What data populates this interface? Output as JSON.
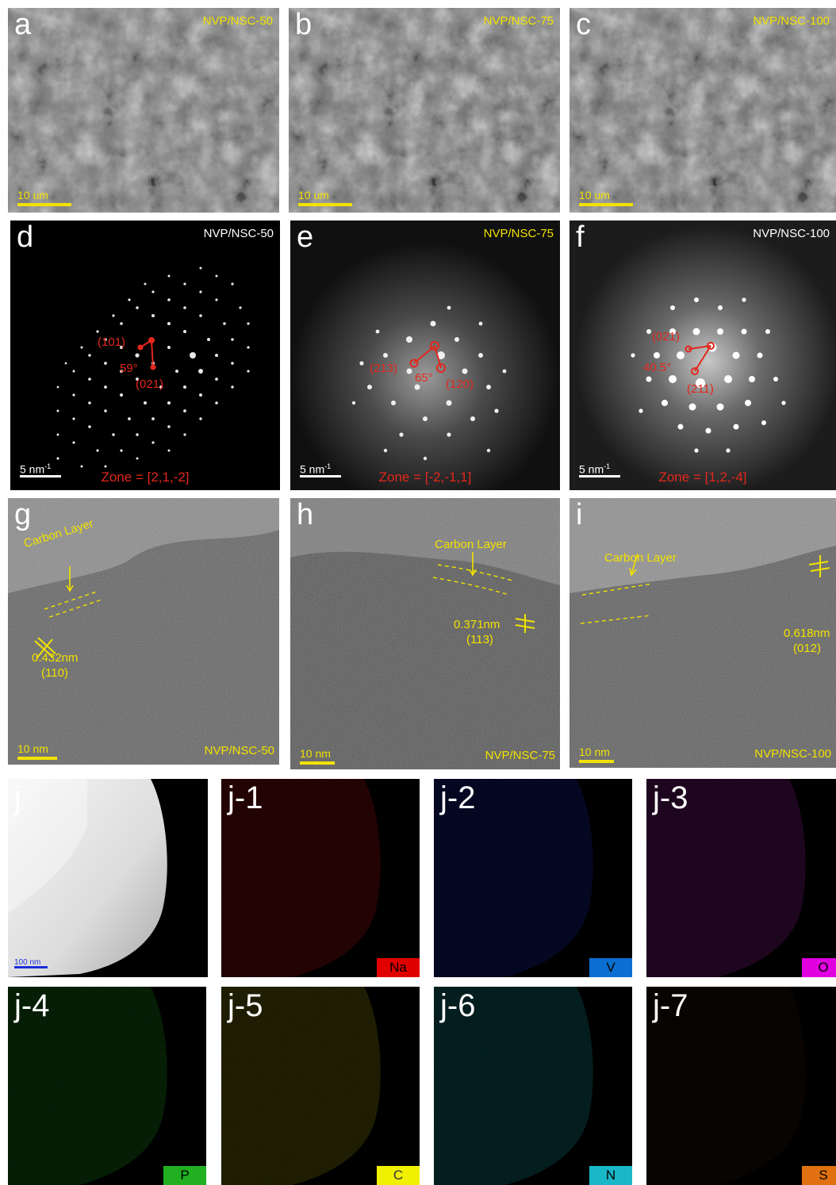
{
  "colors": {
    "label": "#ffffff",
    "yellow": "#f2e200",
    "red": "#e3271c"
  },
  "sem": {
    "a": {
      "letter": "a",
      "sample": "NVP/NSC-50",
      "scale": "10 um"
    },
    "b": {
      "letter": "b",
      "sample": "NVP/NSC-75",
      "scale": "10 um"
    },
    "c": {
      "letter": "c",
      "sample": "NVP/NSC-100",
      "scale": "10 um"
    }
  },
  "saed": {
    "d": {
      "letter": "d",
      "sample": "NVP/NSC-50",
      "scale": "5 nm",
      "scale_exp": "-1",
      "zone": "Zone = [2,1,-2]",
      "spot1": "(101)",
      "spot2": "(021)",
      "angle": "59°"
    },
    "e": {
      "letter": "e",
      "sample": "NVP/NSC-75",
      "scale": "5 nm",
      "scale_exp": "-1",
      "zone": "Zone = [-2,-1,1]",
      "spot1": "(213)",
      "spot2": "(120)",
      "angle": "65°"
    },
    "f": {
      "letter": "f",
      "sample": "NVP/NSC-100",
      "scale": "5 nm",
      "scale_exp": "-1",
      "zone": "Zone = [1,2,-4]",
      "spot1": "(021)",
      "spot2": "(211)",
      "angle": "40.5°"
    }
  },
  "hrtem": {
    "g": {
      "letter": "g",
      "sample": "NVP/NSC-50",
      "scale": "10 nm",
      "layer": "Carbon Layer",
      "d_spacing": "0.432nm",
      "plane": "(110)"
    },
    "h": {
      "letter": "h",
      "sample": "NVP/NSC-75",
      "scale": "10 nm",
      "layer": "Carbon Layer",
      "d_spacing": "0.371nm",
      "plane": "(113)"
    },
    "i": {
      "letter": "i",
      "sample": "NVP/NSC-100",
      "scale": "10 nm",
      "layer": "Carbon Layer",
      "d_spacing": "0.618nm",
      "plane": "(012)"
    }
  },
  "eds": {
    "j": {
      "letter": "j",
      "scale": "100 nm"
    },
    "maps": [
      {
        "letter": "j-1",
        "element": "Na",
        "color": "#e01010"
      },
      {
        "letter": "j-2",
        "element": "V",
        "color": "#1a2dd8"
      },
      {
        "letter": "j-3",
        "element": "O",
        "color": "#c020c8"
      },
      {
        "letter": "j-4",
        "element": "P",
        "color": "#20c020"
      },
      {
        "letter": "j-5",
        "element": "C",
        "color": "#c8c010"
      },
      {
        "letter": "j-6",
        "element": "N",
        "color": "#18c0c8"
      },
      {
        "letter": "j-7",
        "element": "S",
        "color": "#d06010"
      }
    ],
    "badge_colors": [
      "#e00000",
      "#0a6fd0",
      "#e000e0",
      "#20b020",
      "#f0f000",
      "#18b8c8",
      "#e07010"
    ]
  }
}
